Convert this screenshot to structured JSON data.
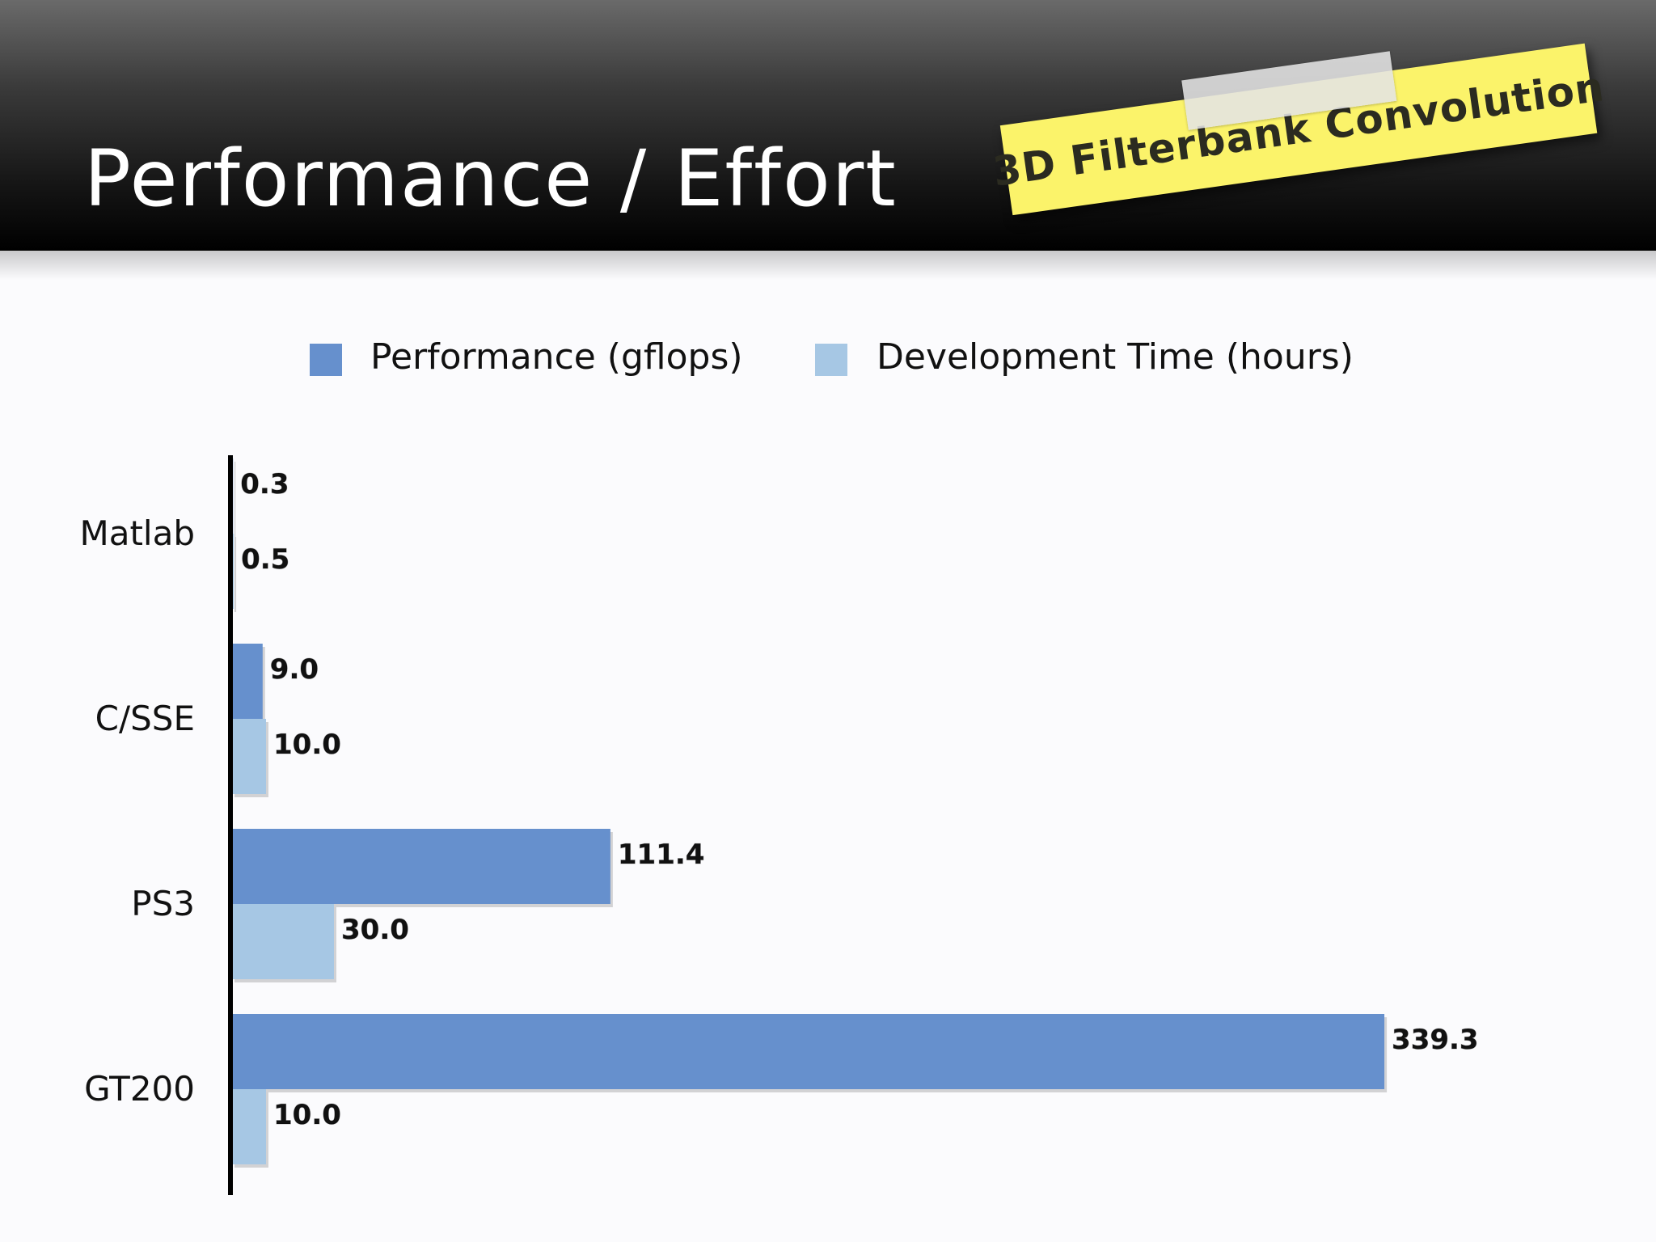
{
  "slide": {
    "title": "Performance / Effort",
    "sticky_note": "3D Filterbank Convolution"
  },
  "colors": {
    "performance": "#6690cd",
    "development": "#a6c7e4",
    "sticky": "#fbf36a"
  },
  "chart_data": {
    "type": "bar",
    "orientation": "horizontal",
    "categories": [
      "Matlab",
      "C/SSE",
      "PS3",
      "GT200"
    ],
    "series": [
      {
        "name": "Performance (gflops)",
        "values": [
          0.3,
          9.0,
          111.4,
          339.3
        ]
      },
      {
        "name": "Development Time (hours)",
        "values": [
          0.5,
          10.0,
          30.0,
          10.0
        ]
      }
    ],
    "data_labels": [
      [
        "0.3",
        "9.0",
        "111.4",
        "339.3"
      ],
      [
        "0.5",
        "10.0",
        "30.0",
        "10.0"
      ]
    ],
    "legend_position": "top",
    "grid": false,
    "xlim": [
      0,
      340
    ]
  }
}
